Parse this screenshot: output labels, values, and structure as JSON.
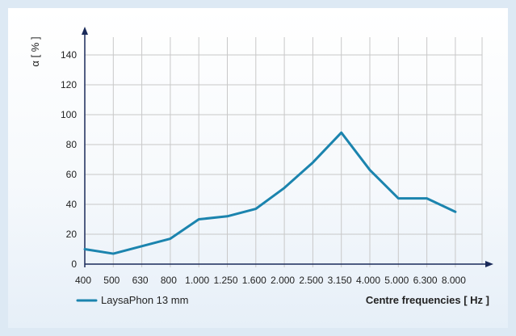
{
  "chart_data": {
    "type": "line",
    "ylabel": "α [ % ]",
    "xlabel": "Centre frequencies [ Hz ]",
    "categories": [
      "400",
      "500",
      "630",
      "800",
      "1.000",
      "1.250",
      "1.600",
      "2.000",
      "2.500",
      "3.150",
      "4.000",
      "5.000",
      "6.300",
      "8.000"
    ],
    "y_ticks": [
      0,
      20,
      40,
      60,
      80,
      100,
      120,
      140
    ],
    "ylim": [
      0,
      150
    ],
    "grid": true,
    "legend_position": "bottom-left",
    "series": [
      {
        "name": "LaysaPhon 13 mm",
        "color": "#1b84ae",
        "values": [
          10,
          7,
          12,
          17,
          30,
          32,
          37,
          51,
          68,
          88,
          63,
          44,
          44,
          35
        ]
      }
    ]
  },
  "colors": {
    "grid": "#c8c8c8",
    "axis": "#1a2a5a"
  }
}
